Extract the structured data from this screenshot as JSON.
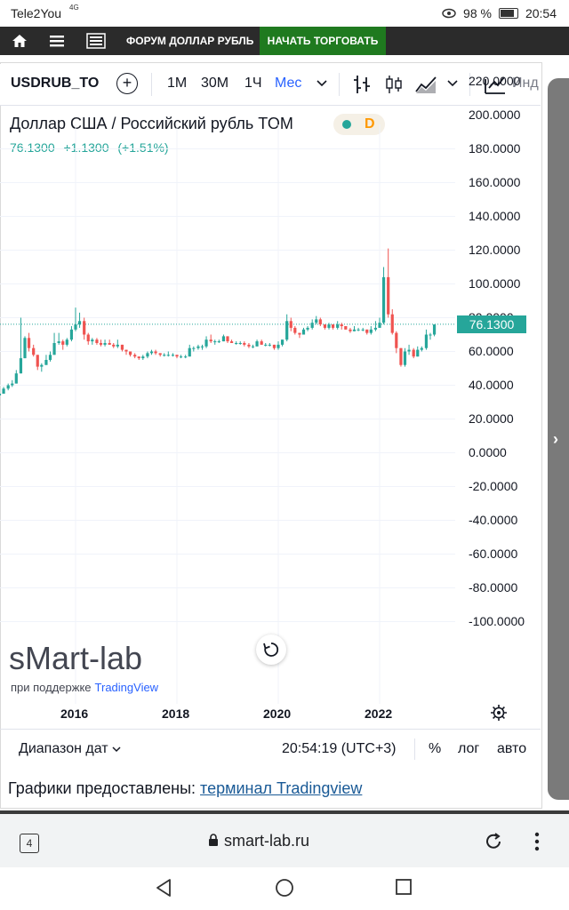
{
  "status_bar": {
    "carrier": "Tele2You",
    "network": "4G",
    "battery": "98 %",
    "time": "20:54"
  },
  "site_nav": {
    "forum_label": "ФОРУМ ДОЛЛАР РУБЛЬ",
    "trade_label": "НАЧАТЬ ТОРГОВАТЬ"
  },
  "toolbar": {
    "symbol": "USDRUB_TOM",
    "timeframes": [
      "1М",
      "30М",
      "1Ч",
      "Мес"
    ],
    "active_timeframe": "Мес",
    "indicators_label": "Инд"
  },
  "chart_header": {
    "title": "Доллар США / Российский рубль TOM",
    "interval_badge": "D",
    "last": "76.1300",
    "change": "+1.1300",
    "change_pct": "(+1.51%)"
  },
  "last_price_label": "76.1300",
  "chart_data": {
    "type": "candlestick",
    "title": "Доллар США / Российский рубль TOM",
    "y_ticks": [
      "220.0000",
      "200.0000",
      "180.0000",
      "160.0000",
      "140.0000",
      "120.0000",
      "100.0000",
      "80.0000",
      "60.0000",
      "40.0000",
      "20.0000",
      "0.0000",
      "-20.0000",
      "-40.0000",
      "-60.0000",
      "-80.0000",
      "-100.0000"
    ],
    "x_ticks": [
      "2016",
      "2018",
      "2020",
      "2022"
    ],
    "ylim": [
      -100,
      220
    ],
    "last_price": 76.13,
    "up_color": "#26a69a",
    "down_color": "#ef5350",
    "candles": [
      [
        2014.5,
        34,
        36,
        34,
        35
      ],
      [
        2014.58,
        35,
        39,
        35,
        38
      ],
      [
        2014.67,
        38,
        41,
        37,
        40
      ],
      [
        2014.75,
        40,
        43,
        39,
        41
      ],
      [
        2014.83,
        41,
        49,
        41,
        47
      ],
      [
        2014.92,
        47,
        80,
        47,
        56
      ],
      [
        2015.0,
        56,
        69,
        56,
        68
      ],
      [
        2015.08,
        68,
        71,
        60,
        62
      ],
      [
        2015.17,
        62,
        64,
        57,
        58
      ],
      [
        2015.25,
        58,
        58,
        49,
        51
      ],
      [
        2015.33,
        51,
        53,
        48,
        52
      ],
      [
        2015.42,
        52,
        58,
        52,
        55
      ],
      [
        2015.5,
        55,
        60,
        54,
        58
      ],
      [
        2015.58,
        58,
        71,
        58,
        65
      ],
      [
        2015.67,
        65,
        71,
        64,
        66
      ],
      [
        2015.75,
        66,
        67,
        61,
        64
      ],
      [
        2015.83,
        64,
        68,
        63,
        67
      ],
      [
        2015.92,
        67,
        75,
        66,
        73
      ],
      [
        2016.0,
        73,
        86,
        72,
        76
      ],
      [
        2016.08,
        76,
        83,
        74,
        78
      ],
      [
        2016.17,
        78,
        80,
        67,
        70
      ],
      [
        2016.25,
        70,
        71,
        64,
        66
      ],
      [
        2016.33,
        66,
        68,
        64,
        67
      ],
      [
        2016.42,
        67,
        68,
        64,
        65
      ],
      [
        2016.5,
        65,
        67,
        63,
        64
      ],
      [
        2016.58,
        64,
        67,
        63,
        65
      ],
      [
        2016.67,
        65,
        67,
        64,
        64
      ],
      [
        2016.75,
        64,
        65,
        62,
        63
      ],
      [
        2016.83,
        63,
        67,
        62,
        64
      ],
      [
        2016.92,
        64,
        64,
        60,
        61
      ],
      [
        2017.0,
        61,
        61,
        58,
        60
      ],
      [
        2017.08,
        60,
        60,
        57,
        58
      ],
      [
        2017.17,
        58,
        59,
        56,
        57
      ],
      [
        2017.25,
        57,
        57,
        55,
        56
      ],
      [
        2017.33,
        56,
        58,
        55,
        57
      ],
      [
        2017.42,
        57,
        60,
        56,
        59
      ],
      [
        2017.5,
        59,
        61,
        58,
        60
      ],
      [
        2017.58,
        60,
        61,
        58,
        59
      ],
      [
        2017.67,
        59,
        59,
        57,
        58
      ],
      [
        2017.75,
        58,
        59,
        57,
        58
      ],
      [
        2017.83,
        58,
        60,
        57,
        58
      ],
      [
        2017.92,
        58,
        59,
        57,
        58
      ],
      [
        2018.0,
        58,
        58,
        56,
        57
      ],
      [
        2018.08,
        57,
        58,
        56,
        57
      ],
      [
        2018.17,
        57,
        58,
        56,
        57
      ],
      [
        2018.25,
        57,
        64,
        57,
        62
      ],
      [
        2018.33,
        62,
        63,
        60,
        62
      ],
      [
        2018.42,
        62,
        64,
        61,
        63
      ],
      [
        2018.5,
        63,
        64,
        61,
        63
      ],
      [
        2018.58,
        63,
        69,
        62,
        67
      ],
      [
        2018.67,
        67,
        70,
        65,
        66
      ],
      [
        2018.75,
        66,
        67,
        64,
        66
      ],
      [
        2018.83,
        66,
        67,
        65,
        66
      ],
      [
        2018.92,
        66,
        70,
        66,
        69
      ],
      [
        2019.0,
        69,
        69,
        65,
        66
      ],
      [
        2019.08,
        66,
        67,
        65,
        65
      ],
      [
        2019.17,
        65,
        66,
        64,
        65
      ],
      [
        2019.25,
        65,
        66,
        64,
        65
      ],
      [
        2019.33,
        65,
        66,
        63,
        64
      ],
      [
        2019.42,
        64,
        65,
        62,
        63
      ],
      [
        2019.5,
        63,
        64,
        62,
        63
      ],
      [
        2019.58,
        63,
        67,
        63,
        66
      ],
      [
        2019.67,
        66,
        67,
        64,
        64
      ],
      [
        2019.75,
        64,
        65,
        63,
        64
      ],
      [
        2019.83,
        64,
        65,
        63,
        64
      ],
      [
        2019.92,
        64,
        64,
        61,
        62
      ],
      [
        2020.0,
        62,
        66,
        61,
        64
      ],
      [
        2020.08,
        64,
        67,
        63,
        67
      ],
      [
        2020.17,
        67,
        82,
        66,
        78
      ],
      [
        2020.25,
        78,
        80,
        72,
        74
      ],
      [
        2020.33,
        74,
        75,
        70,
        71
      ],
      [
        2020.42,
        71,
        71,
        68,
        70
      ],
      [
        2020.5,
        70,
        74,
        70,
        73
      ],
      [
        2020.58,
        73,
        75,
        72,
        74
      ],
      [
        2020.67,
        74,
        79,
        73,
        77
      ],
      [
        2020.75,
        77,
        81,
        76,
        79
      ],
      [
        2020.83,
        79,
        80,
        75,
        76
      ],
      [
        2020.92,
        76,
        76,
        73,
        74
      ],
      [
        2021.0,
        74,
        77,
        73,
        76
      ],
      [
        2021.08,
        76,
        76,
        73,
        74
      ],
      [
        2021.17,
        74,
        78,
        73,
        76
      ],
      [
        2021.25,
        76,
        77,
        73,
        75
      ],
      [
        2021.33,
        75,
        75,
        73,
        73
      ],
      [
        2021.42,
        73,
        74,
        71,
        72
      ],
      [
        2021.5,
        72,
        75,
        72,
        73
      ],
      [
        2021.58,
        73,
        74,
        72,
        73
      ],
      [
        2021.67,
        73,
        74,
        72,
        73
      ],
      [
        2021.75,
        73,
        73,
        70,
        71
      ],
      [
        2021.83,
        71,
        75,
        70,
        73
      ],
      [
        2021.92,
        73,
        78,
        72,
        74
      ],
      [
        2022.0,
        74,
        80,
        74,
        77
      ],
      [
        2022.08,
        77,
        110,
        76,
        104
      ],
      [
        2022.17,
        104,
        121,
        80,
        82
      ],
      [
        2022.25,
        82,
        85,
        70,
        71
      ],
      [
        2022.33,
        71,
        72,
        59,
        62
      ],
      [
        2022.42,
        62,
        62,
        51,
        52
      ],
      [
        2022.5,
        52,
        62,
        51,
        60
      ],
      [
        2022.58,
        60,
        64,
        58,
        61
      ],
      [
        2022.67,
        61,
        62,
        56,
        57
      ],
      [
        2022.75,
        57,
        63,
        57,
        61
      ],
      [
        2022.83,
        61,
        63,
        60,
        62
      ],
      [
        2022.92,
        62,
        73,
        61,
        70
      ],
      [
        2023.0,
        70,
        71,
        67,
        70
      ],
      [
        2023.08,
        70,
        76,
        69,
        76
      ]
    ]
  },
  "chart_footer": {
    "brand": "sMart-lab",
    "powered_prefix": "при поддержке",
    "powered_brand": "TradingView"
  },
  "bottom_bar": {
    "date_range": "Диапазон дат",
    "clock": "20:54:19 (UTC+3)",
    "percent": "%",
    "log": "лог",
    "auto": "авто"
  },
  "credits": {
    "prefix": "Графики предоставлены: ",
    "link": "терминал Tradingview"
  },
  "browser": {
    "tab_count": "4",
    "url": "smart-lab.ru"
  },
  "icons": [
    "home-icon",
    "menu-icon",
    "list-icon",
    "add-icon",
    "bar-chart-icon",
    "candles-icon",
    "area-chart-icon",
    "chevron-down-icon",
    "indicators-icon",
    "reset-icon",
    "gear-icon",
    "lock-icon",
    "reload-icon",
    "more-icon",
    "back-icon",
    "home-circle-icon",
    "recents-icon"
  ]
}
